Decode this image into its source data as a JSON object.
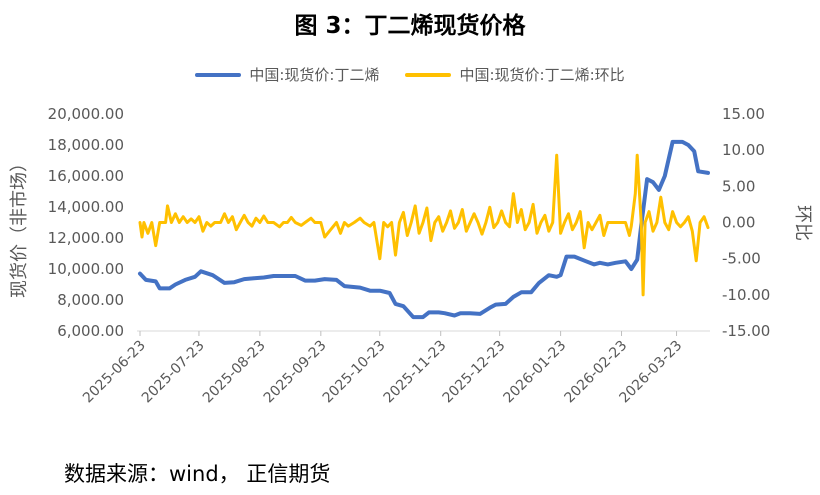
{
  "title": "图 3：丁二烯现货价格",
  "source": "数据来源：wind， 正信期货",
  "colors": {
    "series1": "#4472C4",
    "series2": "#FFC000",
    "axis": "#595959"
  },
  "chart_data": {
    "type": "line",
    "title": "图 3：丁二烯现货价格",
    "y_left_label": "现货价（非市场）",
    "y_right_label": "环比",
    "y_left_range": [
      6000,
      20000
    ],
    "y_left_ticks": [
      "20,000.00",
      "18,000.00",
      "16,000.00",
      "14,000.00",
      "12,000.00",
      "10,000.00",
      "8,000.00",
      "6,000.00"
    ],
    "y_right_range": [
      -15,
      15
    ],
    "y_right_ticks": [
      "15.00",
      "10.00",
      "5.00",
      "0.00",
      "-5.00",
      "-10.00",
      "-15.00"
    ],
    "x_ticks": [
      "2025-06-23",
      "2025-07-23",
      "2025-08-23",
      "2025-09-23",
      "2025-10-23",
      "2025-11-23",
      "2025-12-23",
      "2026-01-23",
      "2026-02-23",
      "2026-03-23"
    ],
    "x_range": [
      "2025-06-23",
      "2026-04-08"
    ],
    "legend_position": "top",
    "grid": false,
    "series": [
      {
        "name": "中国:现货价:丁二烯",
        "axis": "left",
        "points": [
          [
            "2025-06-23",
            9700
          ],
          [
            "2025-06-26",
            9300
          ],
          [
            "2025-07-01",
            9200
          ],
          [
            "2025-07-03",
            8750
          ],
          [
            "2025-07-08",
            8750
          ],
          [
            "2025-07-11",
            9000
          ],
          [
            "2025-07-16",
            9300
          ],
          [
            "2025-07-21",
            9500
          ],
          [
            "2025-07-24",
            9850
          ],
          [
            "2025-07-30",
            9600
          ],
          [
            "2025-08-05",
            9100
          ],
          [
            "2025-08-10",
            9150
          ],
          [
            "2025-08-15",
            9350
          ],
          [
            "2025-08-20",
            9400
          ],
          [
            "2025-08-25",
            9450
          ],
          [
            "2025-08-30",
            9550
          ],
          [
            "2025-09-05",
            9550
          ],
          [
            "2025-09-10",
            9550
          ],
          [
            "2025-09-15",
            9250
          ],
          [
            "2025-09-20",
            9250
          ],
          [
            "2025-09-25",
            9350
          ],
          [
            "2025-10-01",
            9300
          ],
          [
            "2025-10-05",
            8900
          ],
          [
            "2025-10-13",
            8800
          ],
          [
            "2025-10-18",
            8600
          ],
          [
            "2025-10-23",
            8600
          ],
          [
            "2025-10-28",
            8450
          ],
          [
            "2025-10-31",
            7750
          ],
          [
            "2025-11-04",
            7600
          ],
          [
            "2025-11-09",
            6900
          ],
          [
            "2025-11-14",
            6900
          ],
          [
            "2025-11-17",
            7200
          ],
          [
            "2025-11-22",
            7200
          ],
          [
            "2025-11-25",
            7150
          ],
          [
            "2025-11-30",
            7000
          ],
          [
            "2025-12-03",
            7150
          ],
          [
            "2025-12-08",
            7150
          ],
          [
            "2025-12-13",
            7100
          ],
          [
            "2025-12-18",
            7500
          ],
          [
            "2025-12-21",
            7700
          ],
          [
            "2025-12-26",
            7750
          ],
          [
            "2025-12-30",
            8200
          ],
          [
            "2026-01-03",
            8500
          ],
          [
            "2026-01-08",
            8500
          ],
          [
            "2026-01-12",
            9100
          ],
          [
            "2026-01-17",
            9600
          ],
          [
            "2026-01-21",
            9500
          ],
          [
            "2026-01-23",
            9600
          ],
          [
            "2026-01-26",
            10800
          ],
          [
            "2026-01-30",
            10800
          ],
          [
            "2026-02-05",
            10500
          ],
          [
            "2026-02-09",
            10300
          ],
          [
            "2026-02-12",
            10400
          ],
          [
            "2026-02-16",
            10300
          ],
          [
            "2026-02-20",
            10400
          ],
          [
            "2026-02-25",
            10500
          ],
          [
            "2026-02-28",
            10000
          ],
          [
            "2026-03-03",
            10600
          ],
          [
            "2026-03-05",
            12800
          ],
          [
            "2026-03-08",
            15800
          ],
          [
            "2026-03-11",
            15600
          ],
          [
            "2026-03-14",
            15100
          ],
          [
            "2026-03-17",
            16000
          ],
          [
            "2026-03-21",
            18200
          ],
          [
            "2026-03-26",
            18200
          ],
          [
            "2026-03-29",
            18000
          ],
          [
            "2026-04-01",
            17600
          ],
          [
            "2026-04-03",
            16300
          ],
          [
            "2026-04-08",
            16200
          ]
        ]
      },
      {
        "name": "中国:现货价:丁二烯:环比",
        "axis": "right",
        "points": [
          [
            "2025-06-23",
            0.0
          ],
          [
            "2025-06-24",
            -2.0
          ],
          [
            "2025-06-25",
            0.0
          ],
          [
            "2025-06-27",
            -1.5
          ],
          [
            "2025-06-29",
            0.0
          ],
          [
            "2025-07-01",
            -3.2
          ],
          [
            "2025-07-03",
            0.0
          ],
          [
            "2025-07-06",
            0.0
          ],
          [
            "2025-07-07",
            2.3
          ],
          [
            "2025-07-09",
            0.0
          ],
          [
            "2025-07-11",
            1.2
          ],
          [
            "2025-07-13",
            0.0
          ],
          [
            "2025-07-15",
            0.8
          ],
          [
            "2025-07-17",
            0.0
          ],
          [
            "2025-07-19",
            0.5
          ],
          [
            "2025-07-21",
            0.0
          ],
          [
            "2025-07-23",
            0.8
          ],
          [
            "2025-07-25",
            -1.2
          ],
          [
            "2025-07-27",
            0.0
          ],
          [
            "2025-07-29",
            -0.5
          ],
          [
            "2025-07-31",
            0.0
          ],
          [
            "2025-08-03",
            0.0
          ],
          [
            "2025-08-05",
            1.2
          ],
          [
            "2025-08-07",
            0.0
          ],
          [
            "2025-08-09",
            0.8
          ],
          [
            "2025-08-11",
            -1.0
          ],
          [
            "2025-08-13",
            0.0
          ],
          [
            "2025-08-15",
            1.0
          ],
          [
            "2025-08-17",
            0.0
          ],
          [
            "2025-08-19",
            -0.5
          ],
          [
            "2025-08-21",
            0.6
          ],
          [
            "2025-08-23",
            0.0
          ],
          [
            "2025-08-25",
            0.9
          ],
          [
            "2025-08-27",
            0.0
          ],
          [
            "2025-08-30",
            0.0
          ],
          [
            "2025-09-02",
            -0.6
          ],
          [
            "2025-09-04",
            0.0
          ],
          [
            "2025-09-06",
            0.0
          ],
          [
            "2025-09-08",
            0.7
          ],
          [
            "2025-09-10",
            0.0
          ],
          [
            "2025-09-13",
            -0.4
          ],
          [
            "2025-09-15",
            0.0
          ],
          [
            "2025-09-18",
            0.6
          ],
          [
            "2025-09-20",
            0.0
          ],
          [
            "2025-09-23",
            0.0
          ],
          [
            "2025-09-25",
            -2.0
          ],
          [
            "2025-09-28",
            -1.0
          ],
          [
            "2025-10-01",
            0.0
          ],
          [
            "2025-10-03",
            -1.5
          ],
          [
            "2025-10-05",
            0.0
          ],
          [
            "2025-10-07",
            -0.5
          ],
          [
            "2025-10-10",
            0.0
          ],
          [
            "2025-10-13",
            0.6
          ],
          [
            "2025-10-15",
            0.0
          ],
          [
            "2025-10-18",
            -0.5
          ],
          [
            "2025-10-20",
            0.0
          ],
          [
            "2025-10-23",
            -5.0
          ],
          [
            "2025-10-25",
            0.0
          ],
          [
            "2025-10-27",
            -0.6
          ],
          [
            "2025-10-29",
            0.0
          ],
          [
            "2025-10-31",
            -4.5
          ],
          [
            "2025-11-02",
            0.0
          ],
          [
            "2025-11-04",
            1.4
          ],
          [
            "2025-11-06",
            -1.8
          ],
          [
            "2025-11-08",
            0.0
          ],
          [
            "2025-11-10",
            2.3
          ],
          [
            "2025-11-12",
            -1.5
          ],
          [
            "2025-11-14",
            0.0
          ],
          [
            "2025-11-16",
            2.0
          ],
          [
            "2025-11-18",
            -2.5
          ],
          [
            "2025-11-20",
            0.0
          ],
          [
            "2025-11-22",
            0.8
          ],
          [
            "2025-11-24",
            -1.2
          ],
          [
            "2025-11-26",
            0.0
          ],
          [
            "2025-11-28",
            1.6
          ],
          [
            "2025-11-30",
            -0.8
          ],
          [
            "2025-12-02",
            0.0
          ],
          [
            "2025-12-04",
            1.8
          ],
          [
            "2025-12-06",
            -1.2
          ],
          [
            "2025-12-08",
            0.0
          ],
          [
            "2025-12-10",
            1.2
          ],
          [
            "2025-12-12",
            0.0
          ],
          [
            "2025-12-14",
            -1.6
          ],
          [
            "2025-12-16",
            0.0
          ],
          [
            "2025-12-18",
            2.1
          ],
          [
            "2025-12-20",
            -0.7
          ],
          [
            "2025-12-22",
            0.0
          ],
          [
            "2025-12-24",
            1.6
          ],
          [
            "2025-12-26",
            0.0
          ],
          [
            "2025-12-28",
            -0.6
          ],
          [
            "2025-12-30",
            4.0
          ],
          [
            "2026-01-01",
            0.0
          ],
          [
            "2026-01-03",
            1.8
          ],
          [
            "2026-01-05",
            -1.0
          ],
          [
            "2026-01-07",
            0.0
          ],
          [
            "2026-01-09",
            2.5
          ],
          [
            "2026-01-11",
            -1.5
          ],
          [
            "2026-01-13",
            0.0
          ],
          [
            "2026-01-15",
            1.0
          ],
          [
            "2026-01-17",
            -1.2
          ],
          [
            "2026-01-19",
            0.0
          ],
          [
            "2026-01-21",
            9.3
          ],
          [
            "2026-01-23",
            -1.5
          ],
          [
            "2026-01-25",
            0.0
          ],
          [
            "2026-01-27",
            1.2
          ],
          [
            "2026-01-29",
            -1.0
          ],
          [
            "2026-01-31",
            0.0
          ],
          [
            "2026-02-02",
            1.5
          ],
          [
            "2026-02-04",
            -3.5
          ],
          [
            "2026-02-06",
            0.0
          ],
          [
            "2026-02-08",
            -1.0
          ],
          [
            "2026-02-10",
            0.0
          ],
          [
            "2026-02-12",
            1.0
          ],
          [
            "2026-02-14",
            -1.8
          ],
          [
            "2026-02-16",
            0.0
          ],
          [
            "2026-02-19",
            0.0
          ],
          [
            "2026-02-22",
            0.0
          ],
          [
            "2026-02-25",
            0.0
          ],
          [
            "2026-02-27",
            -1.8
          ],
          [
            "2026-02-28",
            -0.5
          ],
          [
            "2026-03-02",
            4.0
          ],
          [
            "2026-03-03",
            9.3
          ],
          [
            "2026-03-05",
            0.0
          ],
          [
            "2026-03-06",
            -10.0
          ],
          [
            "2026-03-07",
            0.0
          ],
          [
            "2026-03-09",
            1.5
          ],
          [
            "2026-03-11",
            -1.2
          ],
          [
            "2026-03-13",
            0.0
          ],
          [
            "2026-03-15",
            3.5
          ],
          [
            "2026-03-17",
            0.0
          ],
          [
            "2026-03-19",
            -1.0
          ],
          [
            "2026-03-21",
            1.5
          ],
          [
            "2026-03-23",
            0.0
          ],
          [
            "2026-03-25",
            -0.6
          ],
          [
            "2026-03-27",
            0.0
          ],
          [
            "2026-03-29",
            0.8
          ],
          [
            "2026-03-31",
            -1.2
          ],
          [
            "2026-04-02",
            -5.3
          ],
          [
            "2026-04-04",
            0.0
          ],
          [
            "2026-04-06",
            0.8
          ],
          [
            "2026-04-08",
            -0.7
          ]
        ]
      }
    ]
  }
}
